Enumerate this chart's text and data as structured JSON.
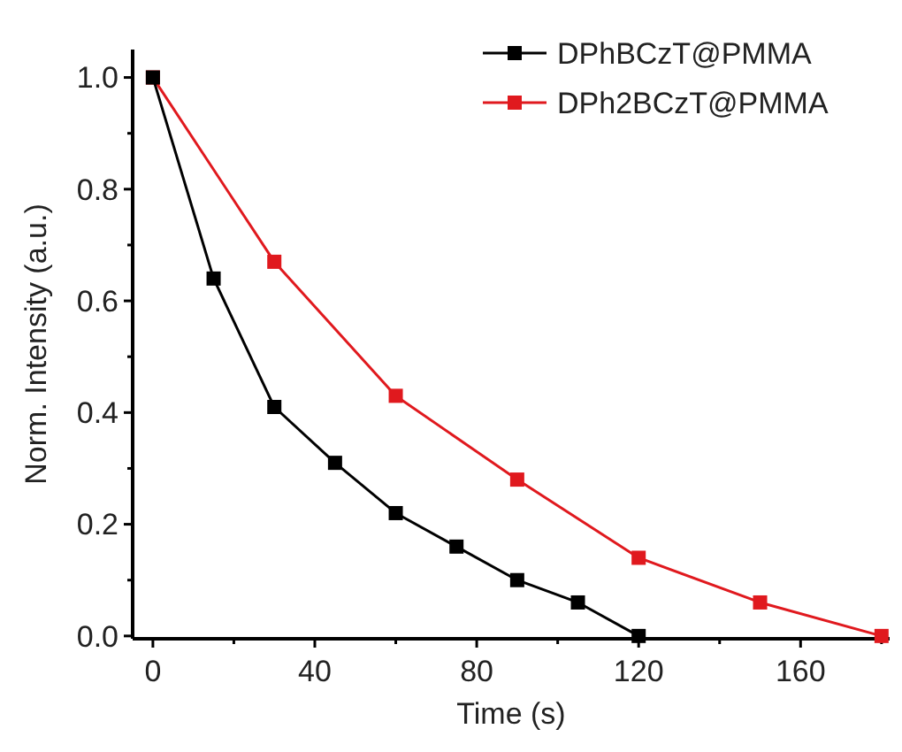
{
  "chart_data": {
    "type": "line",
    "xlabel": "Time (s)",
    "ylabel": "Norm. Intensity (a.u.)",
    "series": [
      {
        "name": "DPhBCzT@PMMA",
        "color": "#000000",
        "x": [
          0,
          15,
          30,
          45,
          60,
          75,
          90,
          105,
          120
        ],
        "values": [
          1.0,
          0.64,
          0.41,
          0.31,
          0.22,
          0.16,
          0.1,
          0.06,
          0.0
        ]
      },
      {
        "name": "DPh2BCzT@PMMA",
        "color": "#e0191e",
        "x": [
          0,
          30,
          60,
          90,
          120,
          150,
          180
        ],
        "values": [
          1.0,
          0.67,
          0.43,
          0.28,
          0.14,
          0.06,
          0.0
        ]
      }
    ],
    "xlim": [
      -5,
      182
    ],
    "xticks": [
      0,
      {
        "value": 20,
        "label": null
      },
      40,
      {
        "value": 60,
        "label": null
      },
      80,
      {
        "value": 100,
        "label": null
      },
      120,
      {
        "value": 140,
        "label": null
      },
      160,
      {
        "value": 180,
        "label": null
      }
    ],
    "ylim": [
      -0.005,
      1.05
    ],
    "yticks": [
      {
        "value": 0,
        "label": "0.0"
      },
      {
        "value": 0.1,
        "label": null
      },
      0.2,
      {
        "value": 0.3,
        "label": null
      },
      0.4,
      {
        "value": 0.5,
        "label": null
      },
      0.6,
      {
        "value": 0.7,
        "label": null
      },
      0.8,
      {
        "value": 0.9,
        "label": null
      },
      {
        "value": 1,
        "label": "1.0"
      }
    ],
    "marker": "square",
    "line_style": "solid",
    "legend": "top right",
    "grid": false
  }
}
